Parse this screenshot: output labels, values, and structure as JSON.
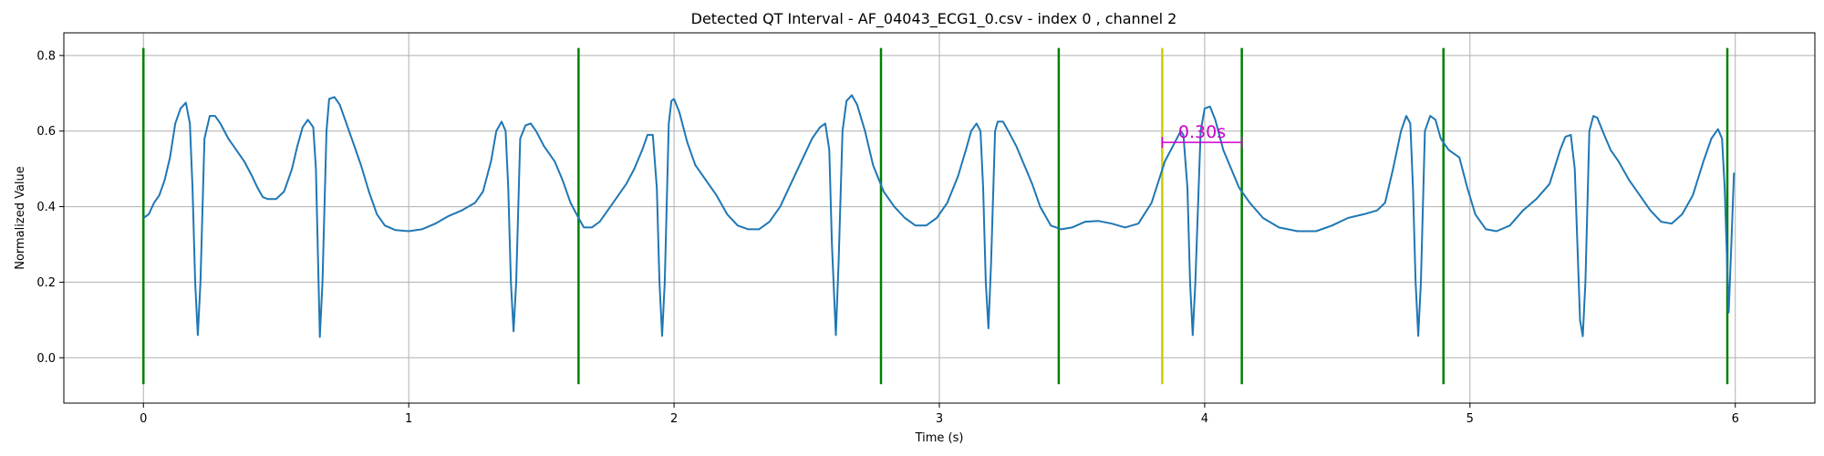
{
  "chart_data": {
    "type": "line",
    "title": "Detected QT Interval - AF_04043_ECG1_0.csv - index 0 , channel 2",
    "xlabel": "Time (s)",
    "ylabel": "Normalized Value",
    "xlim": [
      -0.3,
      6.3
    ],
    "ylim": [
      -0.12,
      0.86
    ],
    "grid": true,
    "x_ticks": [
      0,
      1,
      2,
      3,
      4,
      5,
      6
    ],
    "y_ticks": [
      0.0,
      0.2,
      0.4,
      0.6,
      0.8
    ],
    "x_tick_labels": [
      "0",
      "1",
      "2",
      "3",
      "4",
      "5",
      "6"
    ],
    "y_tick_labels": [
      "0.0",
      "0.2",
      "0.4",
      "0.6",
      "0.8"
    ],
    "colors": {
      "signal": "#1f77b4",
      "r_peak_lines": "#008000",
      "q_onset_line": "#cccc00",
      "qt_interval": "#cc00cc",
      "grid": "#b0b0b0"
    },
    "series": [
      {
        "values": [
          [
            0.0,
            0.37
          ],
          [
            0.02,
            0.38
          ],
          [
            0.04,
            0.41
          ],
          [
            0.06,
            0.43
          ],
          [
            0.08,
            0.47
          ],
          [
            0.1,
            0.53
          ],
          [
            0.12,
            0.62
          ],
          [
            0.14,
            0.66
          ],
          [
            0.16,
            0.675
          ],
          [
            0.175,
            0.62
          ],
          [
            0.185,
            0.45
          ],
          [
            0.195,
            0.2
          ],
          [
            0.205,
            0.06
          ],
          [
            0.215,
            0.2
          ],
          [
            0.23,
            0.58
          ],
          [
            0.25,
            0.64
          ],
          [
            0.27,
            0.64
          ],
          [
            0.29,
            0.62
          ],
          [
            0.32,
            0.58
          ],
          [
            0.35,
            0.55
          ],
          [
            0.38,
            0.52
          ],
          [
            0.41,
            0.48
          ],
          [
            0.43,
            0.45
          ],
          [
            0.45,
            0.425
          ],
          [
            0.47,
            0.42
          ],
          [
            0.5,
            0.42
          ],
          [
            0.53,
            0.44
          ],
          [
            0.56,
            0.5
          ],
          [
            0.58,
            0.56
          ],
          [
            0.6,
            0.61
          ],
          [
            0.62,
            0.63
          ],
          [
            0.64,
            0.61
          ],
          [
            0.65,
            0.5
          ],
          [
            0.66,
            0.2
          ],
          [
            0.665,
            0.055
          ],
          [
            0.675,
            0.2
          ],
          [
            0.69,
            0.6
          ],
          [
            0.7,
            0.685
          ],
          [
            0.72,
            0.69
          ],
          [
            0.74,
            0.67
          ],
          [
            0.76,
            0.63
          ],
          [
            0.79,
            0.57
          ],
          [
            0.82,
            0.51
          ],
          [
            0.85,
            0.44
          ],
          [
            0.88,
            0.38
          ],
          [
            0.91,
            0.35
          ],
          [
            0.95,
            0.338
          ],
          [
            1.0,
            0.335
          ],
          [
            1.05,
            0.34
          ],
          [
            1.1,
            0.355
          ],
          [
            1.15,
            0.375
          ],
          [
            1.2,
            0.39
          ],
          [
            1.25,
            0.41
          ],
          [
            1.28,
            0.44
          ],
          [
            1.31,
            0.52
          ],
          [
            1.33,
            0.6
          ],
          [
            1.35,
            0.625
          ],
          [
            1.365,
            0.6
          ],
          [
            1.375,
            0.45
          ],
          [
            1.385,
            0.2
          ],
          [
            1.395,
            0.07
          ],
          [
            1.405,
            0.2
          ],
          [
            1.42,
            0.58
          ],
          [
            1.44,
            0.615
          ],
          [
            1.46,
            0.62
          ],
          [
            1.48,
            0.6
          ],
          [
            1.51,
            0.56
          ],
          [
            1.55,
            0.52
          ],
          [
            1.58,
            0.47
          ],
          [
            1.61,
            0.41
          ],
          [
            1.64,
            0.37
          ],
          [
            1.66,
            0.345
          ],
          [
            1.69,
            0.345
          ],
          [
            1.72,
            0.36
          ],
          [
            1.75,
            0.39
          ],
          [
            1.78,
            0.42
          ],
          [
            1.82,
            0.46
          ],
          [
            1.85,
            0.5
          ],
          [
            1.88,
            0.55
          ],
          [
            1.9,
            0.59
          ],
          [
            1.92,
            0.59
          ],
          [
            1.935,
            0.45
          ],
          [
            1.945,
            0.2
          ],
          [
            1.955,
            0.058
          ],
          [
            1.965,
            0.2
          ],
          [
            1.98,
            0.62
          ],
          [
            1.99,
            0.68
          ],
          [
            2.0,
            0.685
          ],
          [
            2.02,
            0.65
          ],
          [
            2.05,
            0.57
          ],
          [
            2.08,
            0.51
          ],
          [
            2.12,
            0.47
          ],
          [
            2.16,
            0.43
          ],
          [
            2.2,
            0.38
          ],
          [
            2.24,
            0.35
          ],
          [
            2.28,
            0.34
          ],
          [
            2.32,
            0.34
          ],
          [
            2.36,
            0.36
          ],
          [
            2.4,
            0.4
          ],
          [
            2.44,
            0.46
          ],
          [
            2.48,
            0.52
          ],
          [
            2.52,
            0.58
          ],
          [
            2.55,
            0.61
          ],
          [
            2.57,
            0.62
          ],
          [
            2.585,
            0.55
          ],
          [
            2.595,
            0.3
          ],
          [
            2.61,
            0.06
          ],
          [
            2.62,
            0.25
          ],
          [
            2.635,
            0.6
          ],
          [
            2.65,
            0.68
          ],
          [
            2.67,
            0.695
          ],
          [
            2.69,
            0.67
          ],
          [
            2.72,
            0.6
          ],
          [
            2.75,
            0.51
          ],
          [
            2.79,
            0.44
          ],
          [
            2.83,
            0.4
          ],
          [
            2.87,
            0.37
          ],
          [
            2.91,
            0.35
          ],
          [
            2.95,
            0.35
          ],
          [
            2.99,
            0.37
          ],
          [
            3.03,
            0.41
          ],
          [
            3.07,
            0.48
          ],
          [
            3.1,
            0.55
          ],
          [
            3.12,
            0.6
          ],
          [
            3.14,
            0.62
          ],
          [
            3.155,
            0.6
          ],
          [
            3.165,
            0.45
          ],
          [
            3.175,
            0.2
          ],
          [
            3.185,
            0.078
          ],
          [
            3.195,
            0.25
          ],
          [
            3.21,
            0.6
          ],
          [
            3.22,
            0.625
          ],
          [
            3.24,
            0.625
          ],
          [
            3.26,
            0.6
          ],
          [
            3.29,
            0.56
          ],
          [
            3.32,
            0.51
          ],
          [
            3.35,
            0.46
          ],
          [
            3.38,
            0.4
          ],
          [
            3.42,
            0.35
          ],
          [
            3.46,
            0.34
          ],
          [
            3.5,
            0.345
          ],
          [
            3.55,
            0.36
          ],
          [
            3.6,
            0.362
          ],
          [
            3.65,
            0.355
          ],
          [
            3.7,
            0.345
          ],
          [
            3.75,
            0.355
          ],
          [
            3.8,
            0.41
          ],
          [
            3.85,
            0.52
          ],
          [
            3.88,
            0.56
          ],
          [
            3.91,
            0.6
          ],
          [
            3.92,
            0.59
          ],
          [
            3.935,
            0.45
          ],
          [
            3.945,
            0.2
          ],
          [
            3.955,
            0.06
          ],
          [
            3.965,
            0.2
          ],
          [
            3.985,
            0.6
          ],
          [
            4.0,
            0.66
          ],
          [
            4.02,
            0.665
          ],
          [
            4.04,
            0.63
          ],
          [
            4.07,
            0.55
          ],
          [
            4.1,
            0.5
          ],
          [
            4.13,
            0.45
          ],
          [
            4.17,
            0.41
          ],
          [
            4.22,
            0.37
          ],
          [
            4.28,
            0.345
          ],
          [
            4.35,
            0.335
          ],
          [
            4.42,
            0.335
          ],
          [
            4.48,
            0.35
          ],
          [
            4.54,
            0.37
          ],
          [
            4.6,
            0.38
          ],
          [
            4.65,
            0.39
          ],
          [
            4.68,
            0.41
          ],
          [
            4.71,
            0.5
          ],
          [
            4.74,
            0.6
          ],
          [
            4.76,
            0.64
          ],
          [
            4.775,
            0.62
          ],
          [
            4.785,
            0.45
          ],
          [
            4.795,
            0.2
          ],
          [
            4.805,
            0.058
          ],
          [
            4.815,
            0.2
          ],
          [
            4.83,
            0.6
          ],
          [
            4.85,
            0.64
          ],
          [
            4.87,
            0.63
          ],
          [
            4.89,
            0.58
          ],
          [
            4.92,
            0.55
          ],
          [
            4.96,
            0.53
          ],
          [
            4.99,
            0.45
          ],
          [
            5.02,
            0.38
          ],
          [
            5.06,
            0.34
          ],
          [
            5.1,
            0.335
          ],
          [
            5.15,
            0.35
          ],
          [
            5.2,
            0.39
          ],
          [
            5.25,
            0.42
          ],
          [
            5.3,
            0.46
          ],
          [
            5.34,
            0.55
          ],
          [
            5.36,
            0.585
          ],
          [
            5.38,
            0.59
          ],
          [
            5.395,
            0.5
          ],
          [
            5.405,
            0.3
          ],
          [
            5.415,
            0.1
          ],
          [
            5.425,
            0.057
          ],
          [
            5.435,
            0.2
          ],
          [
            5.45,
            0.6
          ],
          [
            5.465,
            0.64
          ],
          [
            5.48,
            0.635
          ],
          [
            5.5,
            0.6
          ],
          [
            5.53,
            0.55
          ],
          [
            5.56,
            0.52
          ],
          [
            5.6,
            0.47
          ],
          [
            5.64,
            0.43
          ],
          [
            5.68,
            0.39
          ],
          [
            5.72,
            0.36
          ],
          [
            5.76,
            0.355
          ],
          [
            5.8,
            0.38
          ],
          [
            5.84,
            0.43
          ],
          [
            5.88,
            0.52
          ],
          [
            5.91,
            0.58
          ],
          [
            5.935,
            0.605
          ],
          [
            5.95,
            0.58
          ],
          [
            5.96,
            0.45
          ],
          [
            5.975,
            0.12
          ],
          [
            5.985,
            0.3
          ],
          [
            5.995,
            0.49
          ]
        ]
      }
    ],
    "r_peak_lines": [
      0.0,
      1.64,
      2.78,
      3.45,
      4.14,
      4.9,
      5.97
    ],
    "q_onset_lines": [
      3.84
    ],
    "vertical_line_range": [
      -0.07,
      0.82
    ],
    "qt_interval": {
      "start": 3.84,
      "end": 4.14,
      "y": 0.57,
      "label": "0.30s"
    }
  }
}
